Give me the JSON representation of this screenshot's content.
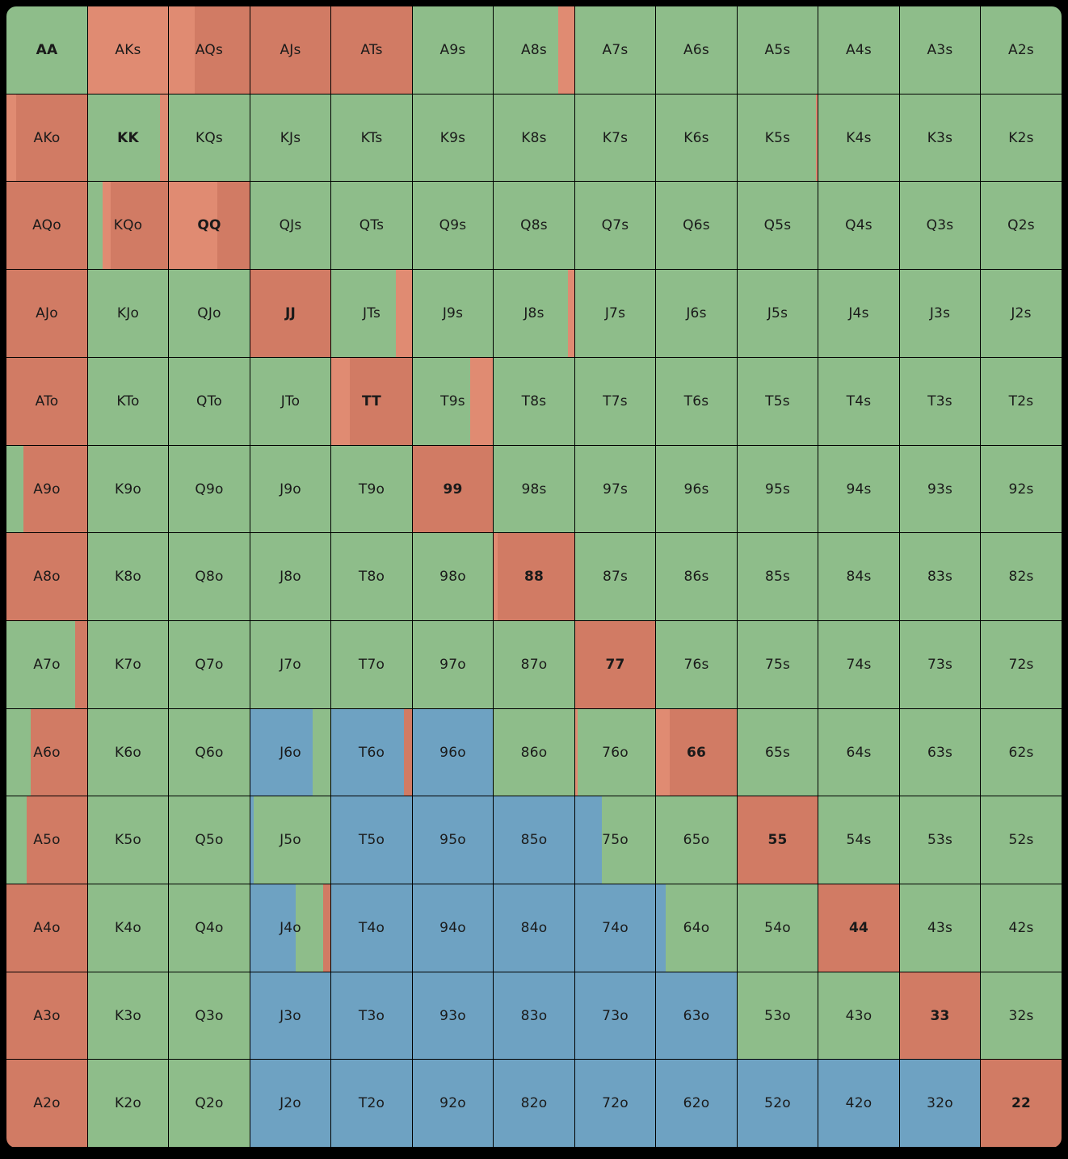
{
  "legend_colors": {
    "green": "#8ebd8a",
    "red": "#d17b64",
    "salmon": "#e08b72",
    "blue": "#6ea2c2"
  },
  "grid": {
    "rows": [
      [
        "AA",
        "AKs",
        "AQs",
        "AJs",
        "ATs",
        "A9s",
        "A8s",
        "A7s",
        "A6s",
        "A5s",
        "A4s",
        "A3s",
        "A2s"
      ],
      [
        "AKo",
        "KK",
        "KQs",
        "KJs",
        "KTs",
        "K9s",
        "K8s",
        "K7s",
        "K6s",
        "K5s",
        "K4s",
        "K3s",
        "K2s"
      ],
      [
        "AQo",
        "KQo",
        "QQ",
        "QJs",
        "QTs",
        "Q9s",
        "Q8s",
        "Q7s",
        "Q6s",
        "Q5s",
        "Q4s",
        "Q3s",
        "Q2s"
      ],
      [
        "AJo",
        "KJo",
        "QJo",
        "JJ",
        "JTs",
        "J9s",
        "J8s",
        "J7s",
        "J6s",
        "J5s",
        "J4s",
        "J3s",
        "J2s"
      ],
      [
        "ATo",
        "KTo",
        "QTo",
        "JTo",
        "TT",
        "T9s",
        "T8s",
        "T7s",
        "T6s",
        "T5s",
        "T4s",
        "T3s",
        "T2s"
      ],
      [
        "A9o",
        "K9o",
        "Q9o",
        "J9o",
        "T9o",
        "99",
        "98s",
        "97s",
        "96s",
        "95s",
        "94s",
        "93s",
        "92s"
      ],
      [
        "A8o",
        "K8o",
        "Q8o",
        "J8o",
        "T8o",
        "98o",
        "88",
        "87s",
        "86s",
        "85s",
        "84s",
        "83s",
        "82s"
      ],
      [
        "A7o",
        "K7o",
        "Q7o",
        "J7o",
        "T7o",
        "97o",
        "87o",
        "77",
        "76s",
        "75s",
        "74s",
        "73s",
        "72s"
      ],
      [
        "A6o",
        "K6o",
        "Q6o",
        "J6o",
        "T6o",
        "96o",
        "86o",
        "76o",
        "66",
        "65s",
        "64s",
        "63s",
        "62s"
      ],
      [
        "A5o",
        "K5o",
        "Q5o",
        "J5o",
        "T5o",
        "95o",
        "85o",
        "75o",
        "65o",
        "55",
        "54s",
        "53s",
        "52s"
      ],
      [
        "A4o",
        "K4o",
        "Q4o",
        "J4o",
        "T4o",
        "94o",
        "84o",
        "74o",
        "64o",
        "54o",
        "44",
        "43s",
        "42s"
      ],
      [
        "A3o",
        "K3o",
        "Q3o",
        "J3o",
        "T3o",
        "93o",
        "83o",
        "73o",
        "63o",
        "53o",
        "43o",
        "33",
        "32s"
      ],
      [
        "A2o",
        "K2o",
        "Q2o",
        "J2o",
        "T2o",
        "92o",
        "82o",
        "72o",
        "62o",
        "52o",
        "42o",
        "32o",
        "22"
      ]
    ],
    "mix": {
      "AA": [
        [
          "green",
          1
        ]
      ],
      "AKs": [
        [
          "salmon",
          1
        ]
      ],
      "AQs": [
        [
          "salmon",
          0.32
        ],
        [
          "red",
          0.68
        ]
      ],
      "AJs": [
        [
          "red",
          1
        ]
      ],
      "ATs": [
        [
          "red",
          1
        ]
      ],
      "A8s": [
        [
          "green",
          0.8
        ],
        [
          "salmon",
          0.2
        ]
      ],
      "AKo": [
        [
          "salmon",
          0.12
        ],
        [
          "red",
          0.88
        ]
      ],
      "KK": [
        [
          "green",
          0.9
        ],
        [
          "salmon",
          0.1
        ]
      ],
      "KQo": [
        [
          "green",
          0.18
        ],
        [
          "salmon",
          0.1
        ],
        [
          "red",
          0.72
        ]
      ],
      "QQ": [
        [
          "salmon",
          0.6
        ],
        [
          "red",
          0.4
        ]
      ],
      "K5s": [
        [
          "green",
          0.98
        ],
        [
          "salmon",
          0.02
        ]
      ],
      "AQo": [
        [
          "red",
          1
        ]
      ],
      "AJo": [
        [
          "red",
          1
        ]
      ],
      "ATo": [
        [
          "red",
          1
        ]
      ],
      "A8o": [
        [
          "red",
          1
        ]
      ],
      "A4o": [
        [
          "red",
          1
        ]
      ],
      "A3o": [
        [
          "red",
          1
        ]
      ],
      "A2o": [
        [
          "red",
          1
        ]
      ],
      "JJ": [
        [
          "red",
          1
        ]
      ],
      "JTs": [
        [
          "green",
          0.8
        ],
        [
          "salmon",
          0.2
        ]
      ],
      "J8s": [
        [
          "green",
          0.92
        ],
        [
          "salmon",
          0.08
        ]
      ],
      "TT": [
        [
          "salmon",
          0.23
        ],
        [
          "red",
          0.77
        ]
      ],
      "T9s": [
        [
          "green",
          0.72
        ],
        [
          "salmon",
          0.28
        ]
      ],
      "A9o": [
        [
          "green",
          0.21
        ],
        [
          "red",
          0.79
        ]
      ],
      "99": [
        [
          "red",
          1
        ]
      ],
      "88": [
        [
          "salmon",
          0.05
        ],
        [
          "red",
          0.95
        ]
      ],
      "A7o": [
        [
          "green",
          0.85
        ],
        [
          "red",
          0.15
        ]
      ],
      "77": [
        [
          "red",
          1
        ]
      ],
      "A6o": [
        [
          "green",
          0.3
        ],
        [
          "red",
          0.7
        ]
      ],
      "J6o": [
        [
          "blue",
          0.78
        ],
        [
          "green",
          0.22
        ]
      ],
      "T6o": [
        [
          "blue",
          0.9
        ],
        [
          "red",
          0.1
        ]
      ],
      "96o": [
        [
          "blue",
          1
        ]
      ],
      "76o": [
        [
          "salmon",
          0.03
        ],
        [
          "green",
          0.97
        ]
      ],
      "66": [
        [
          "salmon",
          0.17
        ],
        [
          "red",
          0.83
        ]
      ],
      "A5o": [
        [
          "green",
          0.25
        ],
        [
          "red",
          0.75
        ]
      ],
      "J5o": [
        [
          "blue",
          0.04
        ],
        [
          "green",
          0.96
        ]
      ],
      "T5o": [
        [
          "blue",
          1
        ]
      ],
      "95o": [
        [
          "blue",
          1
        ]
      ],
      "85o": [
        [
          "blue",
          1
        ]
      ],
      "75o": [
        [
          "blue",
          0.33
        ],
        [
          "green",
          0.67
        ]
      ],
      "55": [
        [
          "red",
          1
        ]
      ],
      "J4o": [
        [
          "blue",
          0.57
        ],
        [
          "green",
          0.34
        ],
        [
          "red",
          0.09
        ]
      ],
      "T4o": [
        [
          "blue",
          1
        ]
      ],
      "94o": [
        [
          "blue",
          1
        ]
      ],
      "84o": [
        [
          "blue",
          1
        ]
      ],
      "74o": [
        [
          "blue",
          1
        ]
      ],
      "64o": [
        [
          "blue",
          0.12
        ],
        [
          "green",
          0.88
        ]
      ],
      "44": [
        [
          "red",
          1
        ]
      ],
      "J3o": [
        [
          "blue",
          1
        ]
      ],
      "T3o": [
        [
          "blue",
          1
        ]
      ],
      "93o": [
        [
          "blue",
          1
        ]
      ],
      "83o": [
        [
          "blue",
          1
        ]
      ],
      "73o": [
        [
          "blue",
          1
        ]
      ],
      "63o": [
        [
          "blue",
          1
        ]
      ],
      "33": [
        [
          "red",
          1
        ]
      ],
      "J2o": [
        [
          "blue",
          1
        ]
      ],
      "T2o": [
        [
          "blue",
          1
        ]
      ],
      "92o": [
        [
          "blue",
          1
        ]
      ],
      "82o": [
        [
          "blue",
          1
        ]
      ],
      "72o": [
        [
          "blue",
          1
        ]
      ],
      "62o": [
        [
          "blue",
          1
        ]
      ],
      "52o": [
        [
          "blue",
          1
        ]
      ],
      "42o": [
        [
          "blue",
          1
        ]
      ],
      "32o": [
        [
          "blue",
          1
        ]
      ],
      "22": [
        [
          "red",
          1
        ]
      ]
    },
    "default_color": "green"
  }
}
